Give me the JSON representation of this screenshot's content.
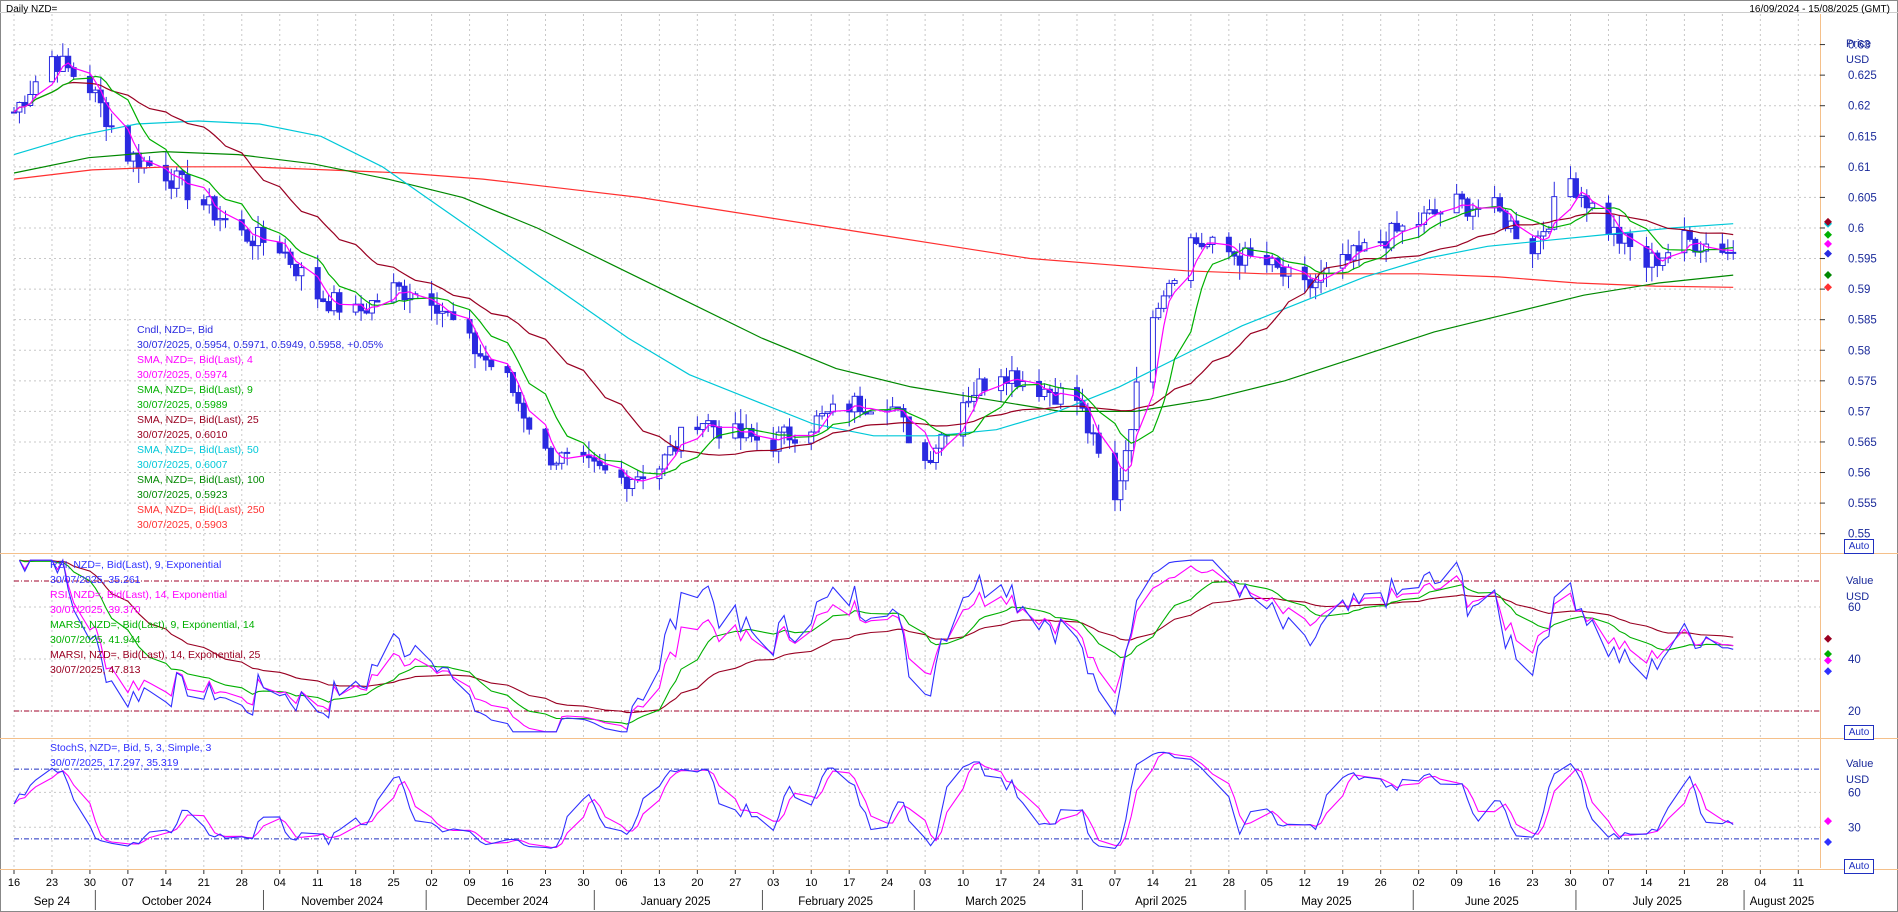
{
  "header": {
    "title": "Daily NZD=",
    "date_range": "16/09/2024 - 15/08/2025 (GMT)"
  },
  "colors": {
    "candle": "#2a2ae0",
    "sma4": "#ff00ff",
    "sma9": "#00b000",
    "sma25": "#990022",
    "sma50": "#00c8d8",
    "sma100": "#008800",
    "sma250": "#ff3030",
    "rsi9": "#3030ff",
    "rsi14": "#ff00ff",
    "marsi9": "#00b000",
    "marsi14": "#990022",
    "stoch_k": "#3030ff",
    "stoch_d": "#ff00ff",
    "grid": "#c8c8c8",
    "panel_border": "#f5c08a"
  },
  "price_panel": {
    "axis_title_1": "Price",
    "axis_title_2": "USD",
    "auto_label": "Auto",
    "ticks": [
      "0.63",
      "0.625",
      "0.62",
      "0.615",
      "0.61",
      "0.605",
      "0.6",
      "0.595",
      "0.59",
      "0.585",
      "0.58",
      "0.575",
      "0.57",
      "0.565",
      "0.56",
      "0.555",
      "0.55"
    ],
    "legend": [
      {
        "label": "Cndl, NZD=, Bid",
        "value": "30/07/2025, 0.5954, 0.5971, 0.5949, 0.5958, +0.05%",
        "color": "#2a2ae0",
        "value_color": "#2a2ae0"
      },
      {
        "label": "SMA, NZD=, Bid(Last), 4",
        "value": "30/07/2025, 0.5974",
        "color": "#ff00ff",
        "value_color": "#ff00ff"
      },
      {
        "label": "SMA, NZD=, Bid(Last), 9",
        "value": "30/07/2025, 0.5989",
        "color": "#00b000",
        "value_color": "#00b000"
      },
      {
        "label": "SMA, NZD=, Bid(Last), 25",
        "value": "30/07/2025, 0.6010",
        "color": "#990022",
        "value_color": "#990022"
      },
      {
        "label": "SMA, NZD=, Bid(Last), 50",
        "value": "30/07/2025, 0.6007",
        "color": "#00c8d8",
        "value_color": "#00c8d8"
      },
      {
        "label": "SMA, NZD=, Bid(Last), 100",
        "value": "30/07/2025, 0.5923",
        "color": "#008800",
        "value_color": "#008800"
      },
      {
        "label": "SMA, NZD=, Bid(Last), 250",
        "value": "30/07/2025, 0.5903",
        "color": "#ff3030",
        "value_color": "#ff3030"
      }
    ]
  },
  "rsi_panel": {
    "axis_title_1": "Value",
    "axis_title_2": "USD",
    "auto_label": "Auto",
    "ticks": [
      "60",
      "40",
      "20"
    ],
    "legend": [
      {
        "label": "RSI, NZD=, Bid(Last), 9, Exponential",
        "value": "30/07/2025, 35.261",
        "color": "#3030ff"
      },
      {
        "label": "RSI, NZD=, Bid(Last), 14, Exponential",
        "value": "30/07/2025, 39.370",
        "color": "#ff00ff"
      },
      {
        "label": "MARSI, NZD=, Bid(Last), 9, Exponential, 14",
        "value": "30/07/2025, 41.944",
        "color": "#00b000"
      },
      {
        "label": "MARSI, NZD=, Bid(Last), 14, Exponential, 25",
        "value": "30/07/2025, 47.813",
        "color": "#990022"
      }
    ]
  },
  "stoch_panel": {
    "axis_title_1": "Value",
    "axis_title_2": "USD",
    "auto_label": "Auto",
    "ticks": [
      "60",
      "30"
    ],
    "legend": [
      {
        "label": "StochS, NZD=, Bid,  5, 3, Simple, 3",
        "value": "30/07/2025, 17.297, 35.319",
        "color": "#3030ff"
      }
    ]
  },
  "x_axis": {
    "day_ticks": [
      "16",
      "23",
      "30",
      "07",
      "14",
      "21",
      "28",
      "04",
      "11",
      "18",
      "25",
      "02",
      "09",
      "16",
      "23",
      "30",
      "06",
      "13",
      "20",
      "27",
      "03",
      "10",
      "17",
      "24",
      "03",
      "10",
      "17",
      "24",
      "31",
      "07",
      "14",
      "21",
      "28",
      "05",
      "12",
      "19",
      "26",
      "02",
      "09",
      "16",
      "23",
      "30",
      "07",
      "14",
      "21",
      "28",
      "04",
      "11"
    ],
    "months": [
      "Sep 24",
      "October 2024",
      "November 2024",
      "December 2024",
      "January 2025",
      "February 2025",
      "March 2025",
      "April 2025",
      "May 2025",
      "June 2025",
      "July 2025",
      "August 2025"
    ]
  },
  "chart_data": {
    "type": "line",
    "title": "Daily NZD=",
    "x_range": [
      "16/09/2024",
      "15/08/2025"
    ],
    "price_ylim": [
      0.547,
      0.635
    ],
    "price_x_weekly": [
      "16/09/2024",
      "23/09/2024",
      "30/09/2024",
      "07/10/2024",
      "14/10/2024",
      "21/10/2024",
      "28/10/2024",
      "04/11/2024",
      "11/11/2024",
      "18/11/2024",
      "25/11/2024",
      "02/12/2024",
      "09/12/2024",
      "16/12/2024",
      "23/12/2024",
      "30/12/2024",
      "06/01/2025",
      "13/01/2025",
      "20/01/2025",
      "27/01/2025",
      "03/02/2025",
      "10/02/2025",
      "17/02/2025",
      "24/02/2025",
      "03/03/2025",
      "10/03/2025",
      "17/03/2025",
      "24/03/2025",
      "31/03/2025",
      "07/04/2025",
      "14/04/2025",
      "21/04/2025",
      "28/04/2025",
      "05/05/2025",
      "12/05/2025",
      "19/05/2025",
      "26/05/2025",
      "02/06/2025",
      "09/06/2025",
      "16/06/2025",
      "23/06/2025",
      "30/06/2025",
      "07/07/2025",
      "14/07/2025",
      "21/07/2025",
      "28/07/2025",
      "30/07/2025"
    ],
    "price_close_weekly": [
      0.619,
      0.628,
      0.623,
      0.612,
      0.609,
      0.604,
      0.599,
      0.597,
      0.589,
      0.586,
      0.59,
      0.589,
      0.581,
      0.575,
      0.563,
      0.561,
      0.559,
      0.561,
      0.569,
      0.566,
      0.565,
      0.568,
      0.571,
      0.572,
      0.562,
      0.572,
      0.577,
      0.574,
      0.572,
      0.555,
      0.587,
      0.598,
      0.596,
      0.594,
      0.59,
      0.594,
      0.598,
      0.601,
      0.604,
      0.603,
      0.597,
      0.608,
      0.6,
      0.594,
      0.598,
      0.597,
      0.5958
    ],
    "series": [
      {
        "name": "SMA, NZD=, Bid(Last), 4",
        "last": 0.5974
      },
      {
        "name": "SMA, NZD=, Bid(Last), 9",
        "last": 0.5989
      },
      {
        "name": "SMA, NZD=, Bid(Last), 25",
        "last": 0.601
      },
      {
        "name": "SMA, NZD=, Bid(Last), 50",
        "last": 0.6007,
        "values": [
          0.612,
          0.615,
          0.617,
          0.6175,
          0.617,
          0.615,
          0.61,
          0.603,
          0.596,
          0.589,
          0.582,
          0.576,
          0.572,
          0.568,
          0.566,
          0.566,
          0.567,
          0.57,
          0.574,
          0.579,
          0.584,
          0.588,
          0.592,
          0.595,
          0.597,
          0.598,
          0.599,
          0.6,
          0.6007
        ]
      },
      {
        "name": "SMA, NZD=, Bid(Last), 100",
        "last": 0.5923,
        "values": [
          0.609,
          0.6115,
          0.6125,
          0.612,
          0.6105,
          0.608,
          0.605,
          0.6,
          0.594,
          0.588,
          0.582,
          0.577,
          0.574,
          0.572,
          0.57,
          0.57,
          0.572,
          0.575,
          0.579,
          0.583,
          0.586,
          0.589,
          0.591,
          0.5923
        ]
      },
      {
        "name": "SMA, NZD=, Bid(Last), 250",
        "last": 0.5903,
        "values": [
          0.608,
          0.6095,
          0.61,
          0.61,
          0.6095,
          0.609,
          0.608,
          0.6065,
          0.605,
          0.603,
          0.601,
          0.599,
          0.597,
          0.595,
          0.594,
          0.593,
          0.5925,
          0.5925,
          0.5925,
          0.592,
          0.591,
          0.5905,
          0.5903
        ]
      },
      {
        "name": "RSI, NZD=, Bid(Last), 9, Exponential",
        "last": 35.261
      },
      {
        "name": "RSI, NZD=, Bid(Last), 14, Exponential",
        "last": 39.37
      },
      {
        "name": "MARSI, NZD=, Bid(Last), 9, Exponential, 14",
        "last": 41.944
      },
      {
        "name": "MARSI, NZD=, Bid(Last), 14, Exponential, 25",
        "last": 47.813
      },
      {
        "name": "StochS, NZD=, Bid, 5, 3, Simple, 3",
        "last_k": 17.297,
        "last_d": 35.319
      }
    ],
    "rsi_ylim": [
      10,
      80
    ],
    "rsi_levels": [
      70,
      20
    ],
    "stoch_ylim": [
      -5,
      105
    ],
    "stoch_levels": [
      80,
      20
    ],
    "grid": true
  }
}
